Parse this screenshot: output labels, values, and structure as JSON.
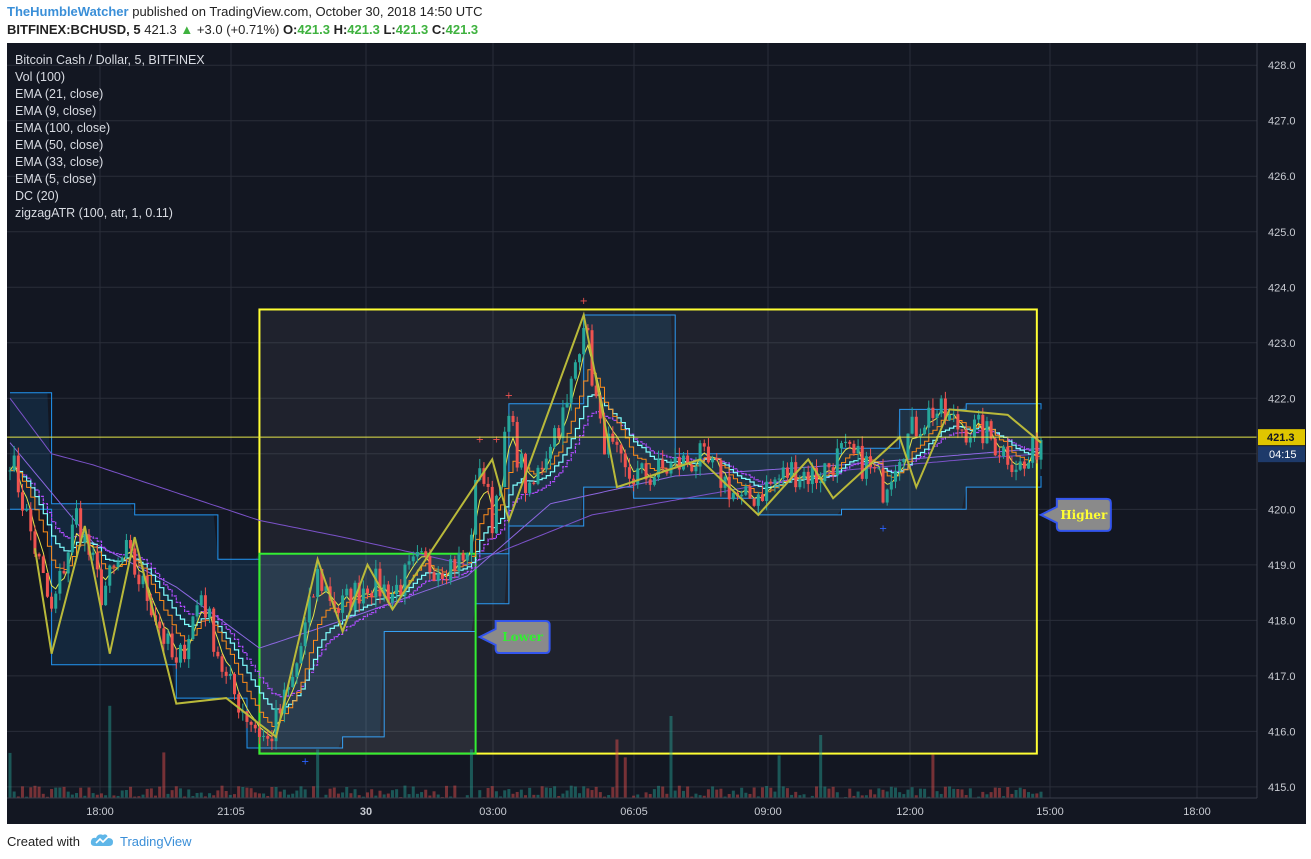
{
  "header": {
    "user": "TheHumbleWatcher",
    "published_text": "published on TradingView.com, October 30, 2018 14:50 UTC",
    "symbol": "BITFINEX:BCHUSD, 5",
    "last": "421.3",
    "change": "+3.0 (+0.71%)",
    "open_label": "O:",
    "open": "421.3",
    "high_label": "H:",
    "high": "421.3",
    "low_label": "L:",
    "low": "421.3",
    "close_label": "C:",
    "close": "421.3"
  },
  "legend": [
    "Bitcoin Cash / Dollar, 5, BITFINEX",
    "Vol (100)",
    "EMA (21, close)",
    "EMA (9, close)",
    "EMA (100, close)",
    "EMA (50, close)",
    "EMA (33, close)",
    "EMA (5, close)",
    "DC (20)",
    "zigzagATR (100, atr, 1, 0.11)"
  ],
  "footer": {
    "created_with": "Created with",
    "brand": "TradingView"
  },
  "colors": {
    "background": "#131722",
    "up": "#26a69a",
    "down": "#ef5350",
    "box_yellow": "#ffff33",
    "box_green": "#33ee33",
    "donchian": "#2196f3",
    "ema_cyan": "#7fffff",
    "ema_purple": "#b04cff",
    "ema_orange": "#ff8c1a",
    "zigzag": "#b9b93a"
  },
  "chart_data": {
    "type": "candlestick",
    "y_axis": {
      "ylim": [
        414.8,
        428.4
      ],
      "ticks": [
        "415.0",
        "416.0",
        "417.0",
        "418.0",
        "419.0",
        "420.0",
        "421.0",
        "422.0",
        "423.0",
        "424.0",
        "425.0",
        "426.0",
        "427.0",
        "428.0"
      ]
    },
    "x_axis": {
      "ticks": [
        "18:00",
        "21:05",
        "30",
        "03:00",
        "06:05",
        "09:00",
        "12:00",
        "15:00",
        "18:00"
      ],
      "bold_tick": "30"
    },
    "price_label": {
      "value": "421.3",
      "countdown": "04:15"
    },
    "key_points": [
      {
        "t": 0,
        "p": 421.0
      },
      {
        "t": 6,
        "p": 419.3
      },
      {
        "t": 10,
        "p": 418.1
      },
      {
        "t": 16,
        "p": 419.9
      },
      {
        "t": 22,
        "p": 418.5
      },
      {
        "t": 28,
        "p": 419.2
      },
      {
        "t": 34,
        "p": 418.3
      },
      {
        "t": 40,
        "p": 417.1
      },
      {
        "t": 46,
        "p": 418.5
      },
      {
        "t": 52,
        "p": 416.9
      },
      {
        "t": 57,
        "p": 416.3
      },
      {
        "t": 62,
        "p": 415.8
      },
      {
        "t": 68,
        "p": 416.9
      },
      {
        "t": 74,
        "p": 418.8
      },
      {
        "t": 79,
        "p": 418.2
      },
      {
        "t": 86,
        "p": 418.7
      },
      {
        "t": 92,
        "p": 418.5
      },
      {
        "t": 98,
        "p": 419.0
      },
      {
        "t": 104,
        "p": 419.0
      },
      {
        "t": 110,
        "p": 419.1
      },
      {
        "t": 113,
        "p": 420.9
      },
      {
        "t": 116,
        "p": 419.8
      },
      {
        "t": 120,
        "p": 421.6
      },
      {
        "t": 125,
        "p": 420.2
      },
      {
        "t": 130,
        "p": 421.3
      },
      {
        "t": 134,
        "p": 421.8
      },
      {
        "t": 138,
        "p": 423.5
      },
      {
        "t": 142,
        "p": 421.4
      },
      {
        "t": 148,
        "p": 420.6
      },
      {
        "t": 154,
        "p": 420.6
      },
      {
        "t": 160,
        "p": 420.8
      },
      {
        "t": 166,
        "p": 420.9
      },
      {
        "t": 172,
        "p": 420.5
      },
      {
        "t": 176,
        "p": 420.1
      },
      {
        "t": 182,
        "p": 420.4
      },
      {
        "t": 188,
        "p": 420.7
      },
      {
        "t": 194,
        "p": 420.6
      },
      {
        "t": 200,
        "p": 421.0
      },
      {
        "t": 206,
        "p": 420.8
      },
      {
        "t": 210,
        "p": 420.4
      },
      {
        "t": 214,
        "p": 421.1
      },
      {
        "t": 218,
        "p": 421.5
      },
      {
        "t": 222,
        "p": 421.8
      },
      {
        "t": 228,
        "p": 421.5
      },
      {
        "t": 234,
        "p": 421.4
      },
      {
        "t": 240,
        "p": 421.0
      },
      {
        "t": 244,
        "p": 420.7
      },
      {
        "t": 248,
        "p": 421.3
      }
    ],
    "zigzag": [
      {
        "t": 6,
        "p": 419.3
      },
      {
        "t": 10,
        "p": 417.4
      },
      {
        "t": 18,
        "p": 419.7
      },
      {
        "t": 24,
        "p": 417.4
      },
      {
        "t": 30,
        "p": 419.5
      },
      {
        "t": 40,
        "p": 416.5
      },
      {
        "t": 52,
        "p": 416.6
      },
      {
        "t": 64,
        "p": 415.9
      },
      {
        "t": 74,
        "p": 419.1
      },
      {
        "t": 80,
        "p": 417.8
      },
      {
        "t": 86,
        "p": 419.0
      },
      {
        "t": 92,
        "p": 418.2
      },
      {
        "t": 116,
        "p": 420.9
      },
      {
        "t": 120,
        "p": 419.8
      },
      {
        "t": 138,
        "p": 423.5
      },
      {
        "t": 146,
        "p": 420.4
      },
      {
        "t": 166,
        "p": 420.9
      },
      {
        "t": 180,
        "p": 419.9
      },
      {
        "t": 192,
        "p": 420.9
      },
      {
        "t": 198,
        "p": 420.2
      },
      {
        "t": 214,
        "p": 421.3
      },
      {
        "t": 218,
        "p": 420.4
      },
      {
        "t": 226,
        "p": 421.8
      },
      {
        "t": 240,
        "p": 421.7
      },
      {
        "t": 248,
        "p": 421.2
      }
    ],
    "ema_slow_100": [
      {
        "t": 0,
        "p": 422.0
      },
      {
        "t": 10,
        "p": 421.0
      },
      {
        "t": 20,
        "p": 420.8
      },
      {
        "t": 40,
        "p": 420.3
      },
      {
        "t": 60,
        "p": 419.8
      },
      {
        "t": 80,
        "p": 419.5
      },
      {
        "t": 110,
        "p": 419.0
      },
      {
        "t": 140,
        "p": 419.9
      },
      {
        "t": 170,
        "p": 420.3
      },
      {
        "t": 200,
        "p": 420.7
      },
      {
        "t": 230,
        "p": 420.9
      },
      {
        "t": 248,
        "p": 421.0
      }
    ],
    "ema_50": [
      {
        "t": 0,
        "p": 421.2
      },
      {
        "t": 20,
        "p": 419.4
      },
      {
        "t": 40,
        "p": 418.6
      },
      {
        "t": 60,
        "p": 417.5
      },
      {
        "t": 80,
        "p": 418.0
      },
      {
        "t": 110,
        "p": 418.8
      },
      {
        "t": 130,
        "p": 420.1
      },
      {
        "t": 160,
        "p": 420.6
      },
      {
        "t": 200,
        "p": 420.8
      },
      {
        "t": 248,
        "p": 421.1
      }
    ],
    "donchian_upper": [
      {
        "t": 0,
        "p": 422.1
      },
      {
        "t": 10,
        "p": 420.1
      },
      {
        "t": 30,
        "p": 419.9
      },
      {
        "t": 50,
        "p": 419.1
      },
      {
        "t": 60,
        "p": 419.2
      },
      {
        "t": 70,
        "p": 419.2
      },
      {
        "t": 90,
        "p": 419.2
      },
      {
        "t": 112,
        "p": 419.2
      },
      {
        "t": 120,
        "p": 421.9
      },
      {
        "t": 138,
        "p": 423.5
      },
      {
        "t": 156,
        "p": 423.5
      },
      {
        "t": 160,
        "p": 421.0
      },
      {
        "t": 200,
        "p": 421.1
      },
      {
        "t": 214,
        "p": 421.8
      },
      {
        "t": 230,
        "p": 421.9
      },
      {
        "t": 248,
        "p": 421.8
      }
    ],
    "donchian_lower": [
      {
        "t": 0,
        "p": 420.0
      },
      {
        "t": 10,
        "p": 417.2
      },
      {
        "t": 30,
        "p": 417.2
      },
      {
        "t": 40,
        "p": 416.6
      },
      {
        "t": 52,
        "p": 416.6
      },
      {
        "t": 57,
        "p": 415.7
      },
      {
        "t": 80,
        "p": 415.9
      },
      {
        "t": 90,
        "p": 417.8
      },
      {
        "t": 112,
        "p": 418.3
      },
      {
        "t": 120,
        "p": 419.7
      },
      {
        "t": 138,
        "p": 420.4
      },
      {
        "t": 150,
        "p": 420.2
      },
      {
        "t": 180,
        "p": 419.9
      },
      {
        "t": 200,
        "p": 420.0
      },
      {
        "t": 230,
        "p": 420.4
      },
      {
        "t": 248,
        "p": 420.6
      }
    ],
    "volume_bars_max_label": "",
    "annotations": [
      {
        "type": "rect",
        "color": "#ffff33",
        "t0": 60,
        "t1": 247,
        "p0": 415.6,
        "p1": 423.6
      },
      {
        "type": "rect",
        "color": "#33ee33",
        "t0": 60,
        "t1": 112,
        "p0": 415.6,
        "p1": 419.2
      },
      {
        "type": "callout",
        "text": "Lower",
        "text_color": "#33ee33",
        "t": 112,
        "p": 417.7
      },
      {
        "type": "callout",
        "text": "Higher",
        "text_color": "#ffff33",
        "t": 247,
        "p": 419.9
      }
    ]
  }
}
